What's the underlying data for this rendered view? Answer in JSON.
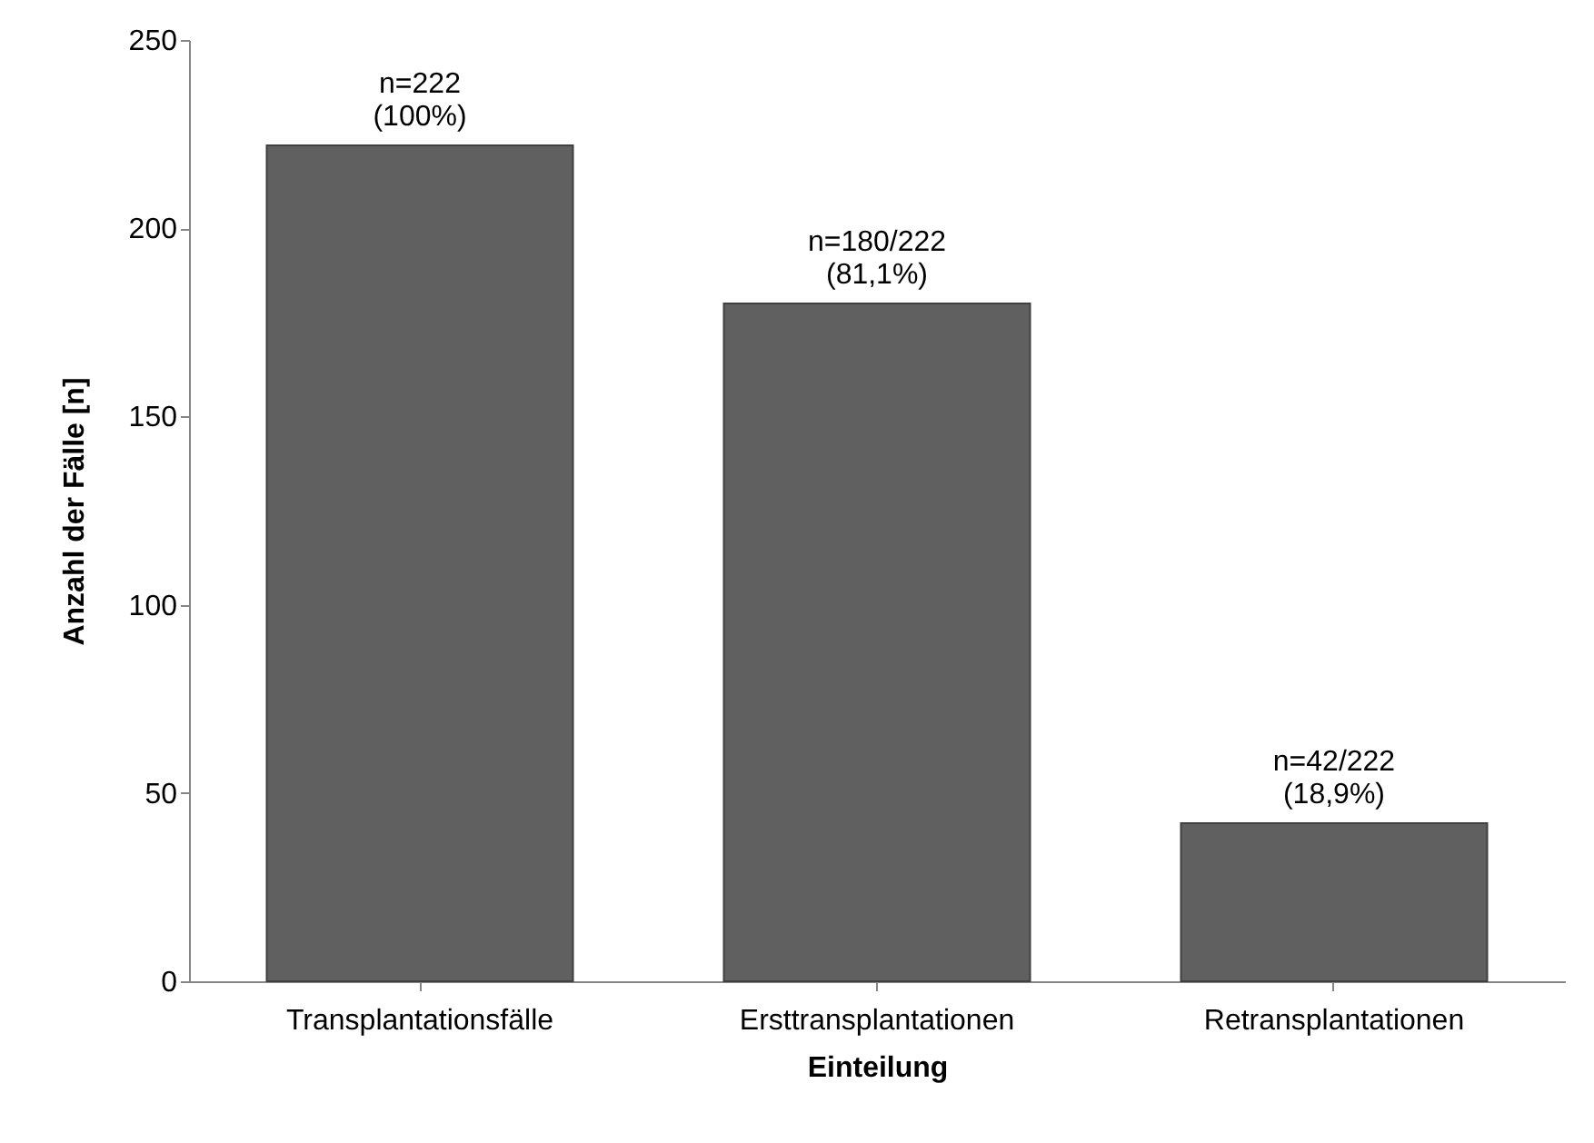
{
  "chart_data": {
    "type": "bar",
    "xlabel": "Einteilung",
    "ylabel": "Anzahl der Fälle [n]",
    "categories": [
      "Transplantationsfälle",
      "Ersttransplantationen",
      "Retransplantationen"
    ],
    "values": [
      222,
      180,
      42
    ],
    "color": "#606060",
    "value_labels": [
      "n=222\n(100%)",
      "n=180/222\n(81,1%)",
      "n=42/222\n(18,9%)"
    ],
    "ylim": [
      0,
      250
    ],
    "yticks": [
      0,
      50,
      100,
      150,
      200,
      250
    ],
    "grid": false
  }
}
